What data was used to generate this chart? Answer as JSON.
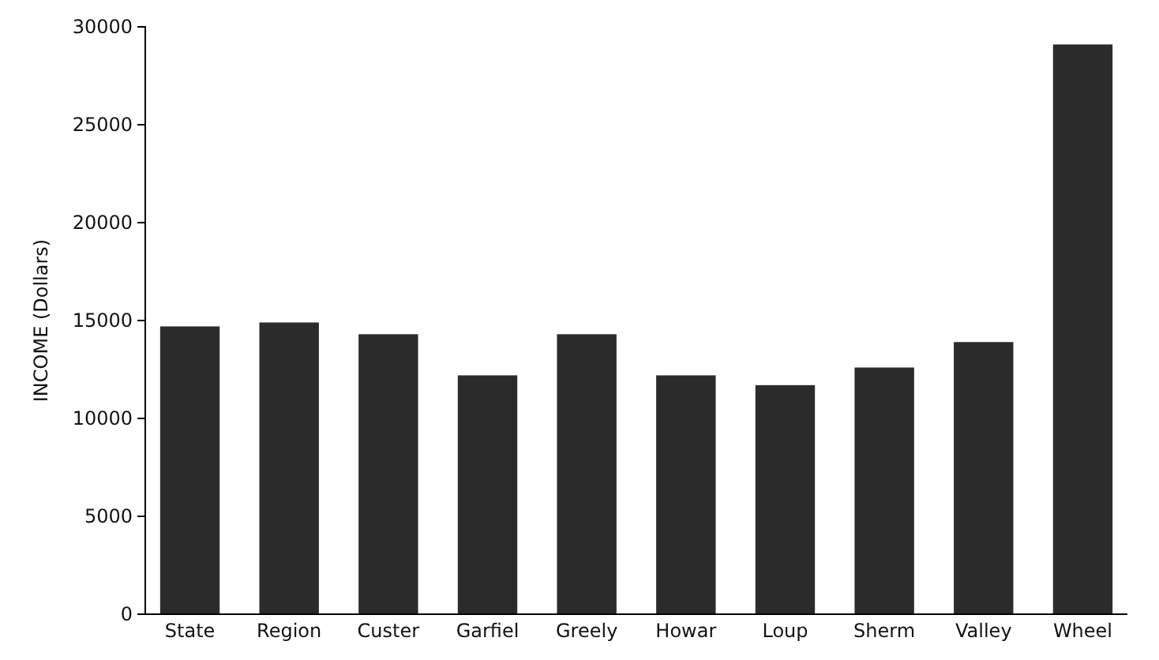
{
  "chart_data": {
    "type": "bar",
    "ylabel": "INCOME   (Dollars)",
    "categories": [
      "State",
      "Region",
      "Custer",
      "Garfiel",
      "Greely",
      "Howar",
      "Loup",
      "Sherm",
      "Valley",
      "Wheel"
    ],
    "values": [
      14700,
      14900,
      14300,
      12200,
      14300,
      12200,
      11700,
      12600,
      13900,
      29100
    ],
    "color": "#2b2b2b",
    "ylim": [
      0,
      30000
    ],
    "yticks": [
      0,
      5000,
      10000,
      15000,
      20000,
      25000,
      30000
    ],
    "grid": false
  }
}
